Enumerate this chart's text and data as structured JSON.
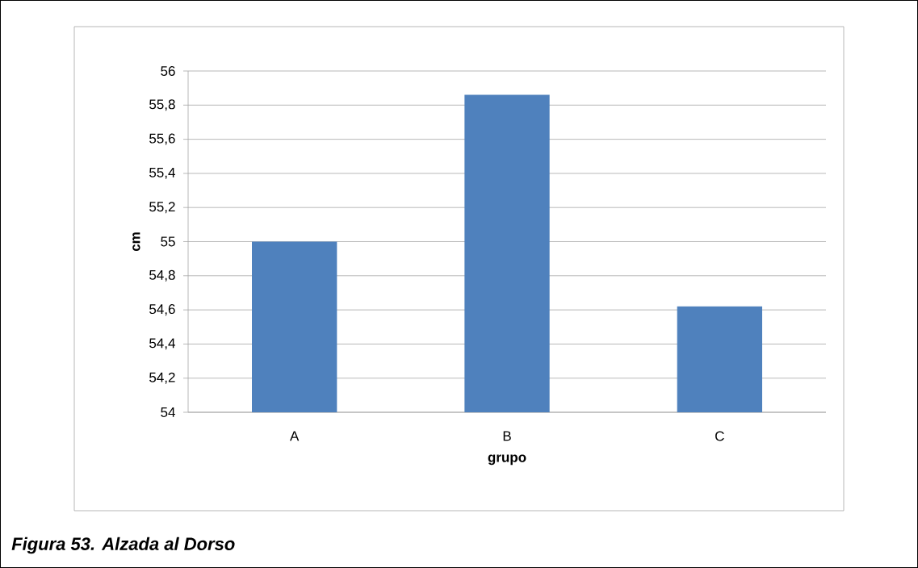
{
  "chart_data": {
    "type": "bar",
    "categories": [
      "A",
      "B",
      "C"
    ],
    "values": [
      55.0,
      55.86,
      54.62
    ],
    "color": "#4f81bd",
    "xlabel": "grupo",
    "ylabel": "cm",
    "ylim": [
      54,
      56
    ],
    "yticks": [
      54,
      {
        "value": 54.2,
        "label": "54,2"
      },
      {
        "value": 54.4,
        "label": "54,4"
      },
      {
        "value": 54.6,
        "label": "54,6"
      },
      {
        "value": 54.8,
        "label": "54,8"
      },
      55,
      {
        "value": 55.2,
        "label": "55,2"
      },
      {
        "value": 55.4,
        "label": "55,4"
      },
      {
        "value": 55.6,
        "label": "55,6"
      },
      {
        "value": 55.8,
        "label": "55,8"
      },
      56
    ],
    "grid": "y",
    "annotations": [
      "Figura  53. Alzada al Dorso"
    ]
  }
}
